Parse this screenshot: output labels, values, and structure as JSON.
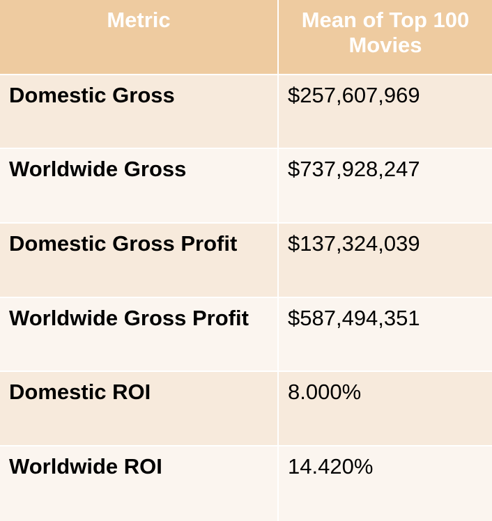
{
  "table": {
    "headers": [
      "Metric",
      "Mean of Top 100 Movies"
    ],
    "rows": [
      {
        "metric": "Domestic Gross",
        "value": "$257,607,969"
      },
      {
        "metric": "Worldwide Gross",
        "value": "$737,928,247"
      },
      {
        "metric": "Domestic Gross Profit",
        "value": "$137,324,039"
      },
      {
        "metric": "Worldwide Gross Profit",
        "value": "$587,494,351"
      },
      {
        "metric": "Domestic ROI",
        "value": "8.000%"
      },
      {
        "metric": "Worldwide ROI",
        "value": "14.420%"
      }
    ]
  },
  "colors": {
    "header_bg": "#eecba0",
    "header_text": "#ffffff",
    "row_band_dark": "#f7eadc",
    "row_band_light": "#fbf5ef",
    "body_text": "#000000"
  }
}
